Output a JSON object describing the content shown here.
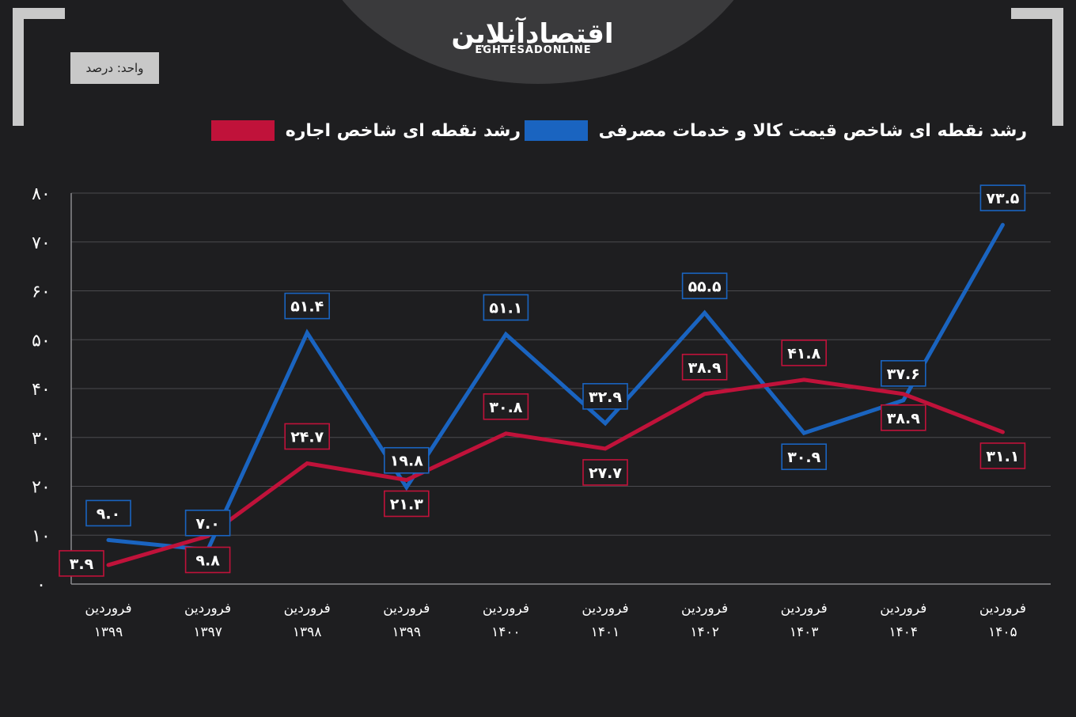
{
  "brand": {
    "logo_text": "اقتصادآنلاین",
    "logo_subtitle": "EGHTESADONLINE"
  },
  "unit_label": "واحد: درصد",
  "legend": {
    "cpi_label": "رشد نقطه ای شاخص قیمت کالا و خدمات مصرفی",
    "rent_label": "رشد نقطه ای شاخص اجاره"
  },
  "colors": {
    "cpi": "#1a64c0",
    "rent": "#c0123a",
    "background": "#1e1e20",
    "grid": "#4a4a4e",
    "text": "#ffffff"
  },
  "chart_data": {
    "type": "line",
    "title": "",
    "xlabel": "",
    "ylabel": "",
    "ylim": [
      0,
      80
    ],
    "y_ticks": [
      "۰",
      "۱۰",
      "۲۰",
      "۳۰",
      "۴۰",
      "۵۰",
      "۶۰",
      "۷۰",
      "۸۰"
    ],
    "y_tick_values": [
      0,
      10,
      20,
      30,
      40,
      50,
      60,
      70,
      80
    ],
    "categories": [
      {
        "line1": "فروردین",
        "line2": "۱۳۹۹"
      },
      {
        "line1": "فروردین",
        "line2": "۱۳۹۷"
      },
      {
        "line1": "فروردین",
        "line2": "۱۳۹۸"
      },
      {
        "line1": "فروردین",
        "line2": "۱۳۹۹"
      },
      {
        "line1": "فروردین",
        "line2": "۱۴۰۰"
      },
      {
        "line1": "فروردین",
        "line2": "۱۴۰۱"
      },
      {
        "line1": "فروردین",
        "line2": "۱۴۰۲"
      },
      {
        "line1": "فروردین",
        "line2": "۱۴۰۳"
      },
      {
        "line1": "فروردین",
        "line2": "۱۴۰۴"
      },
      {
        "line1": "فروردین",
        "line2": "۱۴۰۵"
      }
    ],
    "grid": true,
    "series": [
      {
        "key": "cpi",
        "name": "رشد نقطه ای شاخص قیمت کالا و خدمات مصرفی",
        "values": [
          9.0,
          7.0,
          51.4,
          19.8,
          51.1,
          32.9,
          55.5,
          30.9,
          37.6,
          73.5
        ],
        "labels": [
          "۹.۰",
          "۷.۰",
          "۵۱.۴",
          "۱۹.۸",
          "۵۱.۱",
          "۳۲.۹",
          "۵۵.۵",
          "۳۰.۹",
          "۳۷.۶",
          "۷۳.۵"
        ],
        "label_position": [
          "above",
          "above",
          "above",
          "above",
          "above",
          "above",
          "above",
          "below",
          "above",
          "above"
        ]
      },
      {
        "key": "rent",
        "name": "رشد نقطه ای شاخص اجاره",
        "values": [
          3.9,
          9.8,
          24.7,
          21.3,
          30.8,
          27.7,
          38.9,
          41.8,
          38.9,
          31.1
        ],
        "labels": [
          "۳.۹",
          "۹.۸",
          "۲۴.۷",
          "۲۱.۳",
          "۳۰.۸",
          "۲۷.۷",
          "۳۸.۹",
          "۴۱.۸",
          "۳۸.۹",
          "۳۱.۱"
        ],
        "label_position": [
          "left",
          "below",
          "above",
          "below",
          "above",
          "below",
          "above",
          "above",
          "below",
          "below"
        ]
      }
    ]
  }
}
